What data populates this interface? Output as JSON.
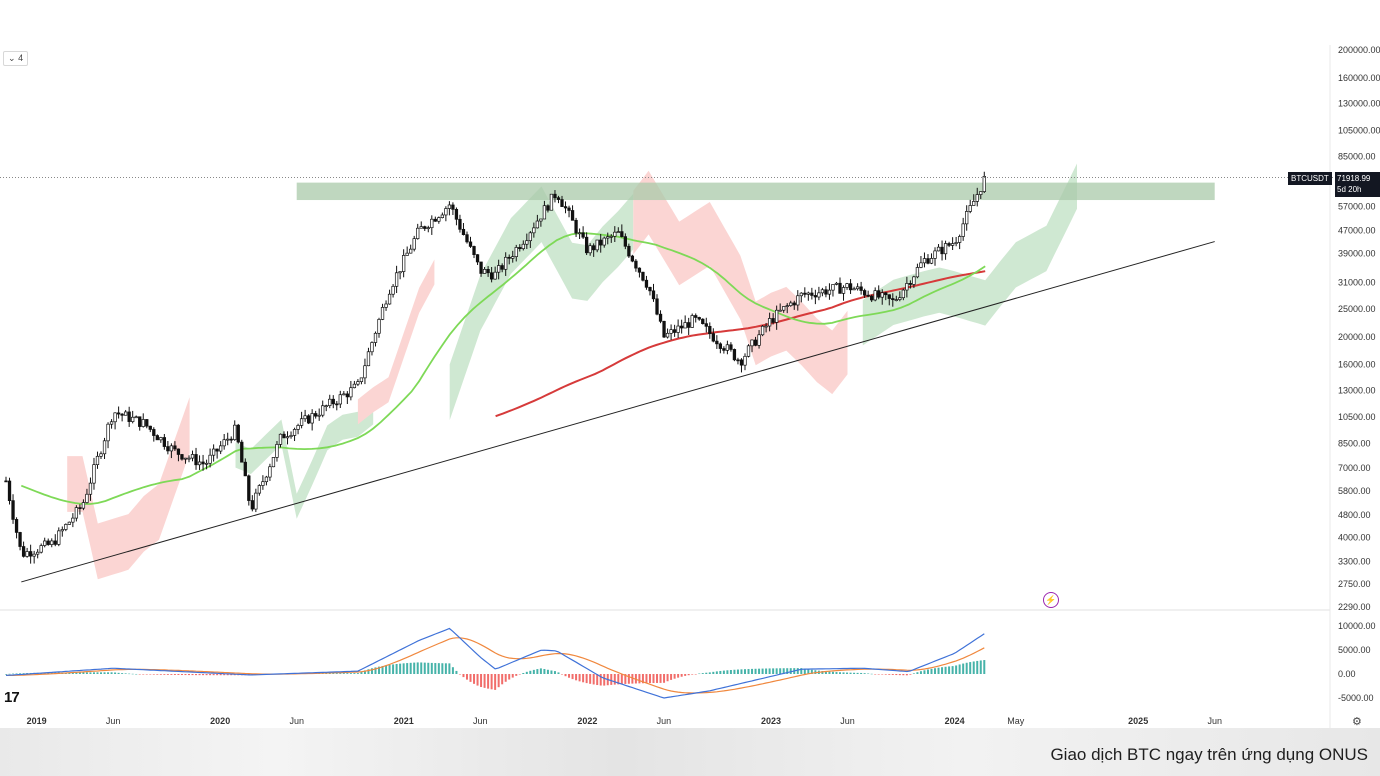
{
  "toolbar": {
    "interval_label": "4",
    "interval_icon": "chevron-down-icon"
  },
  "symbol": {
    "ticker": "BTCUSDT",
    "last_price": "71918.99",
    "countdown": "5d 20h"
  },
  "caption": "Giao dịch BTC ngay trên ứng dụng ONUS",
  "colors": {
    "up": "#111111",
    "down": "#111111",
    "ma_fast": "#7ed957",
    "ma_slow": "#d63a3a",
    "cloud_bull": "#cfe8d2",
    "cloud_bear": "#fbd5d3",
    "resistance": "#a9c9a9",
    "macd": "#3f72d8",
    "signal": "#f0883e",
    "hist_pos": "#26a69a",
    "hist_neg": "#ef5350"
  },
  "chart_data": {
    "type": "candlestick",
    "scale": "log",
    "price_axis_ticks": [
      "200000.00",
      "160000.00",
      "130000.00",
      "105000.00",
      "85000.00",
      "57000.00",
      "47000.00",
      "39000.00",
      "31000.00",
      "25000.00",
      "20000.00",
      "16000.00",
      "13000.00",
      "10500.00",
      "8500.00",
      "7000.00",
      "5800.00",
      "4800.00",
      "4000.00",
      "3300.00",
      "2750.00",
      "2290.00"
    ],
    "time_axis_ticks": [
      "2019",
      "Jun",
      "2020",
      "Jun",
      "2021",
      "Jun",
      "2022",
      "Jun",
      "2023",
      "Jun",
      "2024",
      "May",
      "2025",
      "Jun"
    ],
    "ylim": [
      2290,
      200000
    ],
    "price_path": [
      [
        "2018-11",
        6300
      ],
      [
        "2018-12",
        3500
      ],
      [
        "2019-02",
        3800
      ],
      [
        "2019-04",
        5200
      ],
      [
        "2019-06",
        11000
      ],
      [
        "2019-08",
        10000
      ],
      [
        "2019-10",
        8000
      ],
      [
        "2019-12",
        7200
      ],
      [
        "2020-02",
        9500
      ],
      [
        "2020-03",
        5000
      ],
      [
        "2020-05",
        9000
      ],
      [
        "2020-08",
        11500
      ],
      [
        "2020-10",
        13500
      ],
      [
        "2020-12",
        29000
      ],
      [
        "2021-02",
        47000
      ],
      [
        "2021-04",
        58000
      ],
      [
        "2021-06",
        34000
      ],
      [
        "2021-07",
        33000
      ],
      [
        "2021-09",
        45000
      ],
      [
        "2021-11",
        64000
      ],
      [
        "2022-01",
        40000
      ],
      [
        "2022-03",
        46000
      ],
      [
        "2022-05",
        30000
      ],
      [
        "2022-06",
        20000
      ],
      [
        "2022-08",
        23000
      ],
      [
        "2022-11",
        16500
      ],
      [
        "2023-01",
        23000
      ],
      [
        "2023-03",
        28000
      ],
      [
        "2023-06",
        30000
      ],
      [
        "2023-09",
        26500
      ],
      [
        "2023-11",
        37000
      ],
      [
        "2024-01",
        43000
      ],
      [
        "2024-03",
        71918.99
      ]
    ],
    "resistance_zone": [
      60000,
      69000
    ],
    "trendline": [
      [
        "2018-12",
        2800
      ],
      [
        "2025-06",
        43000
      ]
    ],
    "macd_axis_ticks": [
      "10000.00",
      "5000.00",
      "0.00",
      "-5000.00"
    ],
    "macd": [
      [
        "2018-11",
        -300
      ],
      [
        "2019-06",
        1200
      ],
      [
        "2020-03",
        -200
      ],
      [
        "2020-10",
        600
      ],
      [
        "2021-02",
        7000
      ],
      [
        "2021-04",
        9500
      ],
      [
        "2021-06",
        3500
      ],
      [
        "2021-07",
        1000
      ],
      [
        "2021-10",
        5000
      ],
      [
        "2021-11",
        4800
      ],
      [
        "2022-02",
        -800
      ],
      [
        "2022-06",
        -5000
      ],
      [
        "2022-09",
        -3500
      ],
      [
        "2023-03",
        1000
      ],
      [
        "2023-07",
        1200
      ],
      [
        "2023-10",
        500
      ],
      [
        "2024-01",
        4300
      ],
      [
        "2024-03",
        8500
      ]
    ]
  }
}
